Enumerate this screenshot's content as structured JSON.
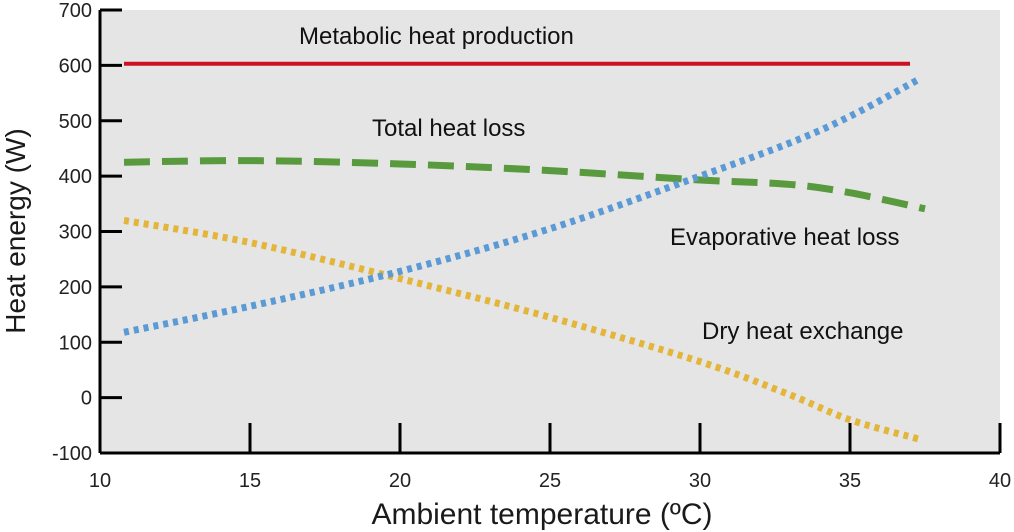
{
  "chart_data": {
    "type": "line",
    "xlabel": "Ambient temperature (ºC)",
    "ylabel": "Heat energy (W)",
    "xlim": [
      10,
      40
    ],
    "ylim": [
      -100,
      700
    ],
    "x_ticks": [
      "10",
      "15",
      "20",
      "25",
      "30",
      "35",
      "40"
    ],
    "y_ticks": [
      "-100",
      "0",
      "100",
      "200",
      "300",
      "400",
      "500",
      "600",
      "700"
    ],
    "x_tick_values": [
      10,
      15,
      20,
      25,
      30,
      35,
      40
    ],
    "y_tick_values": [
      -100,
      0,
      100,
      200,
      300,
      400,
      500,
      600,
      700
    ],
    "grid": false,
    "background": "#e5e5e5",
    "series": [
      {
        "label": "Metabolic heat production",
        "color": "#cc1122",
        "style": "solid",
        "x": [
          10.8,
          37
        ],
        "y": [
          603,
          603
        ]
      },
      {
        "label": "Total heat loss",
        "color": "#cc1122",
        "style": "solid",
        "x": [],
        "y": []
      },
      {
        "label": "Evaporative heat loss",
        "color": "#5a9a3e",
        "style": "dashed",
        "x": [
          10.8,
          15,
          20,
          25,
          30,
          33,
          35,
          37.5
        ],
        "y": [
          425,
          428,
          422,
          410,
          393,
          385,
          370,
          341
        ]
      },
      {
        "label": "Dry heat exchange",
        "color": "#e3b53b",
        "style": "dotted",
        "x": [
          10.8,
          15,
          20,
          25,
          30,
          33,
          35,
          37.3
        ],
        "y": [
          320,
          280,
          215,
          145,
          65,
          5,
          -40,
          -75
        ]
      },
      {
        "label": "",
        "color": "#5b9ad5",
        "style": "dotted",
        "x": [
          10.8,
          15,
          20,
          25,
          30,
          33,
          35,
          37.3
        ],
        "y": [
          118,
          165,
          228,
          305,
          400,
          460,
          508,
          575
        ]
      }
    ],
    "annotations": [
      {
        "text": "Metabolic heat production",
        "x": 10.8,
        "y": 600
      },
      {
        "text": "Total heat loss",
        "x": 15,
        "y": 500
      },
      {
        "text": "Evaporative heat loss",
        "x": 30,
        "y": 300
      },
      {
        "text": "Dry heat exchange",
        "x": 30,
        "y": 100
      }
    ]
  }
}
